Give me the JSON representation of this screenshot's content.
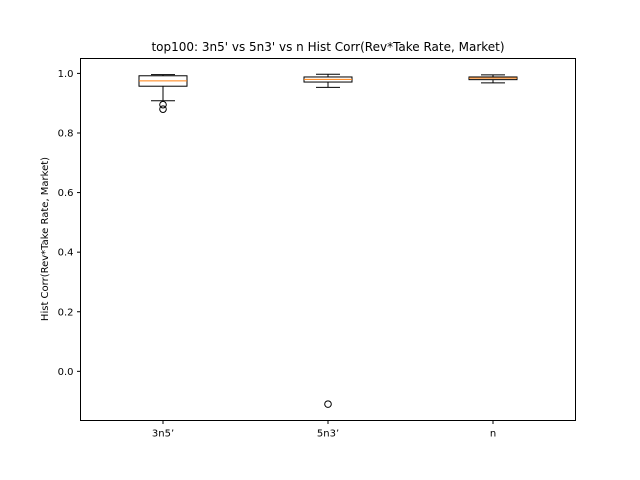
{
  "chart_data": {
    "type": "boxplot",
    "title": "top100: 3n5' vs 5n3' vs n Hist Corr(Rev*Take Rate, Market)",
    "xlabel": "",
    "ylabel": "Hist Corr(Rev*Take Rate, Market)",
    "ylim": [
      -0.165,
      1.05
    ],
    "yticks": [
      0.0,
      0.2,
      0.4,
      0.6,
      0.8,
      1.0
    ],
    "ytick_labels": [
      "0.0",
      "0.2",
      "0.4",
      "0.6",
      "0.8",
      "1.0"
    ],
    "categories": [
      "3n5’",
      "5n3’",
      "n"
    ],
    "boxes": [
      {
        "whisker_low": 0.908,
        "q1": 0.957,
        "median": 0.975,
        "q3": 0.992,
        "whisker_high": 0.996,
        "outliers": [
          0.895,
          0.88
        ]
      },
      {
        "whisker_low": 0.953,
        "q1": 0.971,
        "median": 0.98,
        "q3": 0.988,
        "whisker_high": 0.997,
        "outliers": [
          -0.11
        ]
      },
      {
        "whisker_low": 0.968,
        "q1": 0.979,
        "median": 0.984,
        "q3": 0.988,
        "whisker_high": 0.995,
        "outliers": []
      }
    ],
    "grid": false,
    "colors": {
      "box": "#000000",
      "median": "#ff7f0e",
      "background": "#ffffff"
    }
  }
}
